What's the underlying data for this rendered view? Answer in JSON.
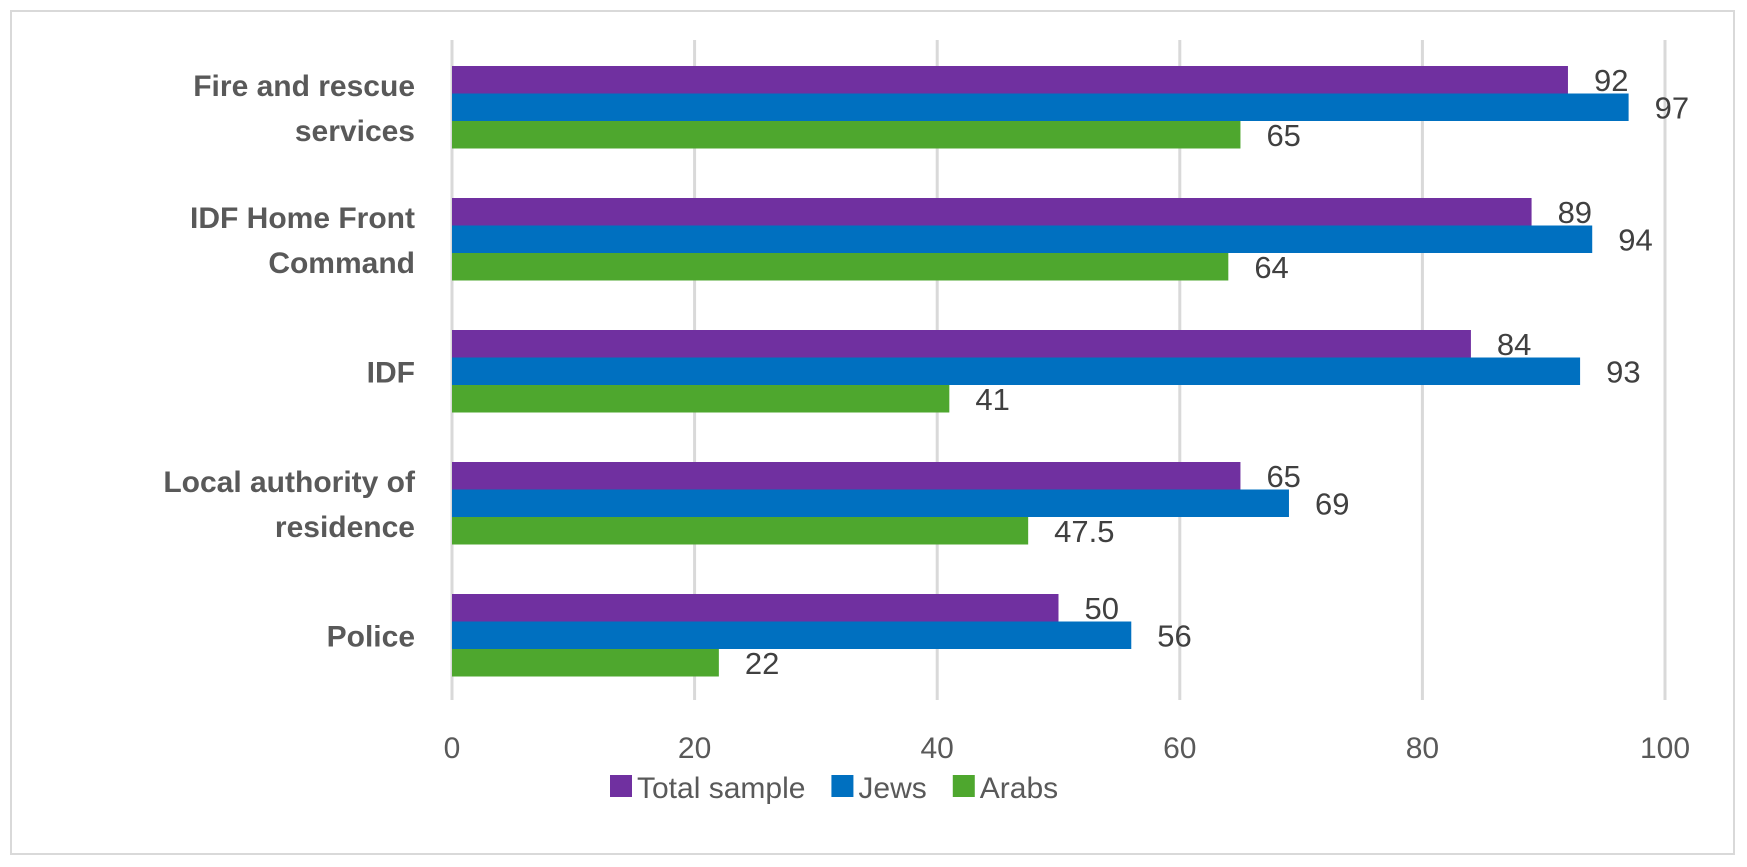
{
  "chart_data": {
    "type": "bar",
    "orientation": "horizontal",
    "categories": [
      [
        "Fire and rescue",
        "services"
      ],
      [
        "IDF Home Front",
        "Command"
      ],
      [
        "IDF"
      ],
      [
        "Local authority of",
        "residence"
      ],
      [
        "Police"
      ]
    ],
    "series": [
      {
        "name": "Total sample",
        "color": "#7030a0",
        "values": [
          92,
          89,
          84,
          65,
          50
        ]
      },
      {
        "name": "Jews",
        "color": "#0070c0",
        "values": [
          97,
          94,
          93,
          69,
          56
        ]
      },
      {
        "name": "Arabs",
        "color": "#4ea72e",
        "values": [
          65,
          64,
          41,
          47.5,
          22
        ]
      }
    ],
    "xlim": [
      0,
      100
    ],
    "xticks": [
      0,
      20,
      40,
      60,
      80,
      100
    ],
    "grid": "vertical",
    "legend": "bottom",
    "title": "",
    "xlabel": "",
    "ylabel": ""
  }
}
